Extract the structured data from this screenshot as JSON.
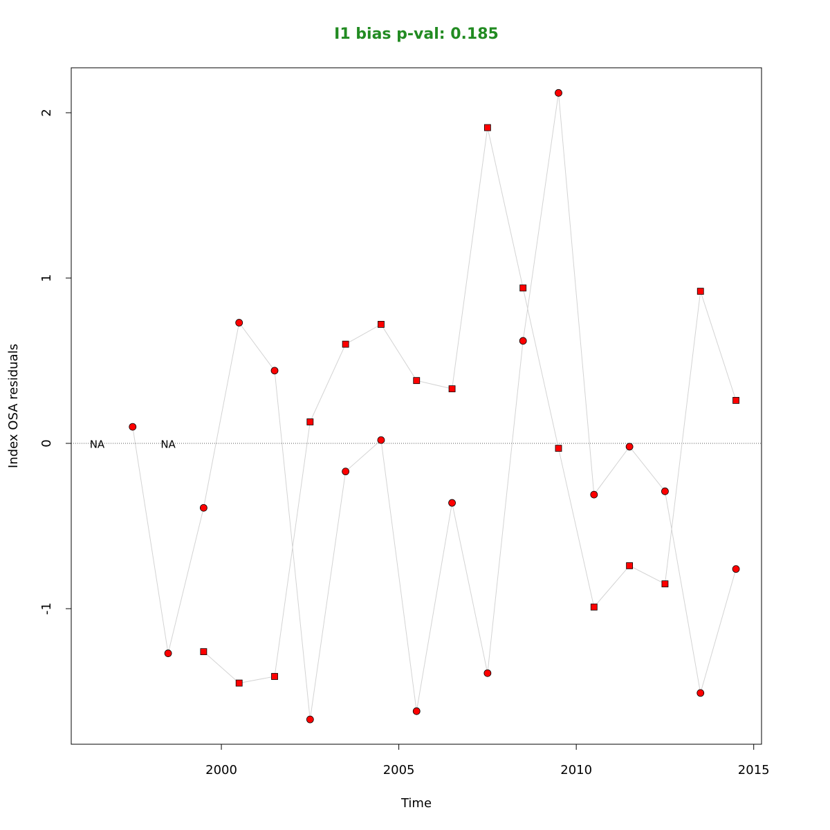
{
  "chart_data": {
    "type": "line",
    "title": "I1 bias p-val: 0.185",
    "x_label": "Time",
    "y_label": "Index OSA residuals",
    "x": [
      1996.5,
      1997.5,
      1998.5,
      1999.5,
      2000.5,
      2001.5,
      2002.5,
      2003.5,
      2004.5,
      2005.5,
      2006.5,
      2007.5,
      2008.5,
      2009.5,
      2010.5,
      2011.5,
      2012.5,
      2013.5,
      2014.5
    ],
    "series": [
      {
        "marker": "circle",
        "color": "#ff0000",
        "line_color": "#d3d3d3",
        "values": [
          null,
          0.1,
          -1.27,
          -0.39,
          0.73,
          0.44,
          -1.67,
          -0.17,
          0.02,
          -1.62,
          -0.36,
          -1.39,
          0.62,
          2.12,
          -0.31,
          -0.02,
          -0.29,
          -1.51,
          -0.76
        ]
      },
      {
        "marker": "square",
        "color": "#ff0000",
        "line_color": "#d3d3d3",
        "values": [
          null,
          null,
          null,
          -1.26,
          -1.45,
          -1.41,
          0.13,
          0.6,
          0.72,
          0.38,
          0.33,
          1.91,
          0.94,
          -0.03,
          -0.99,
          -0.74,
          -0.85,
          0.92,
          0.26
        ]
      }
    ],
    "annotations": [
      {
        "text": "NA",
        "x": 1996.5,
        "y": 0
      },
      {
        "text": "NA",
        "x": 1998.5,
        "y": 0
      }
    ],
    "reference_line": 0,
    "xlim": [
      1995.77,
      2015.22
    ],
    "ylim": [
      -1.82,
      2.272
    ],
    "xticks": [
      2000,
      2005,
      2010,
      2015
    ],
    "yticks": [
      -1,
      0,
      1,
      2
    ]
  }
}
